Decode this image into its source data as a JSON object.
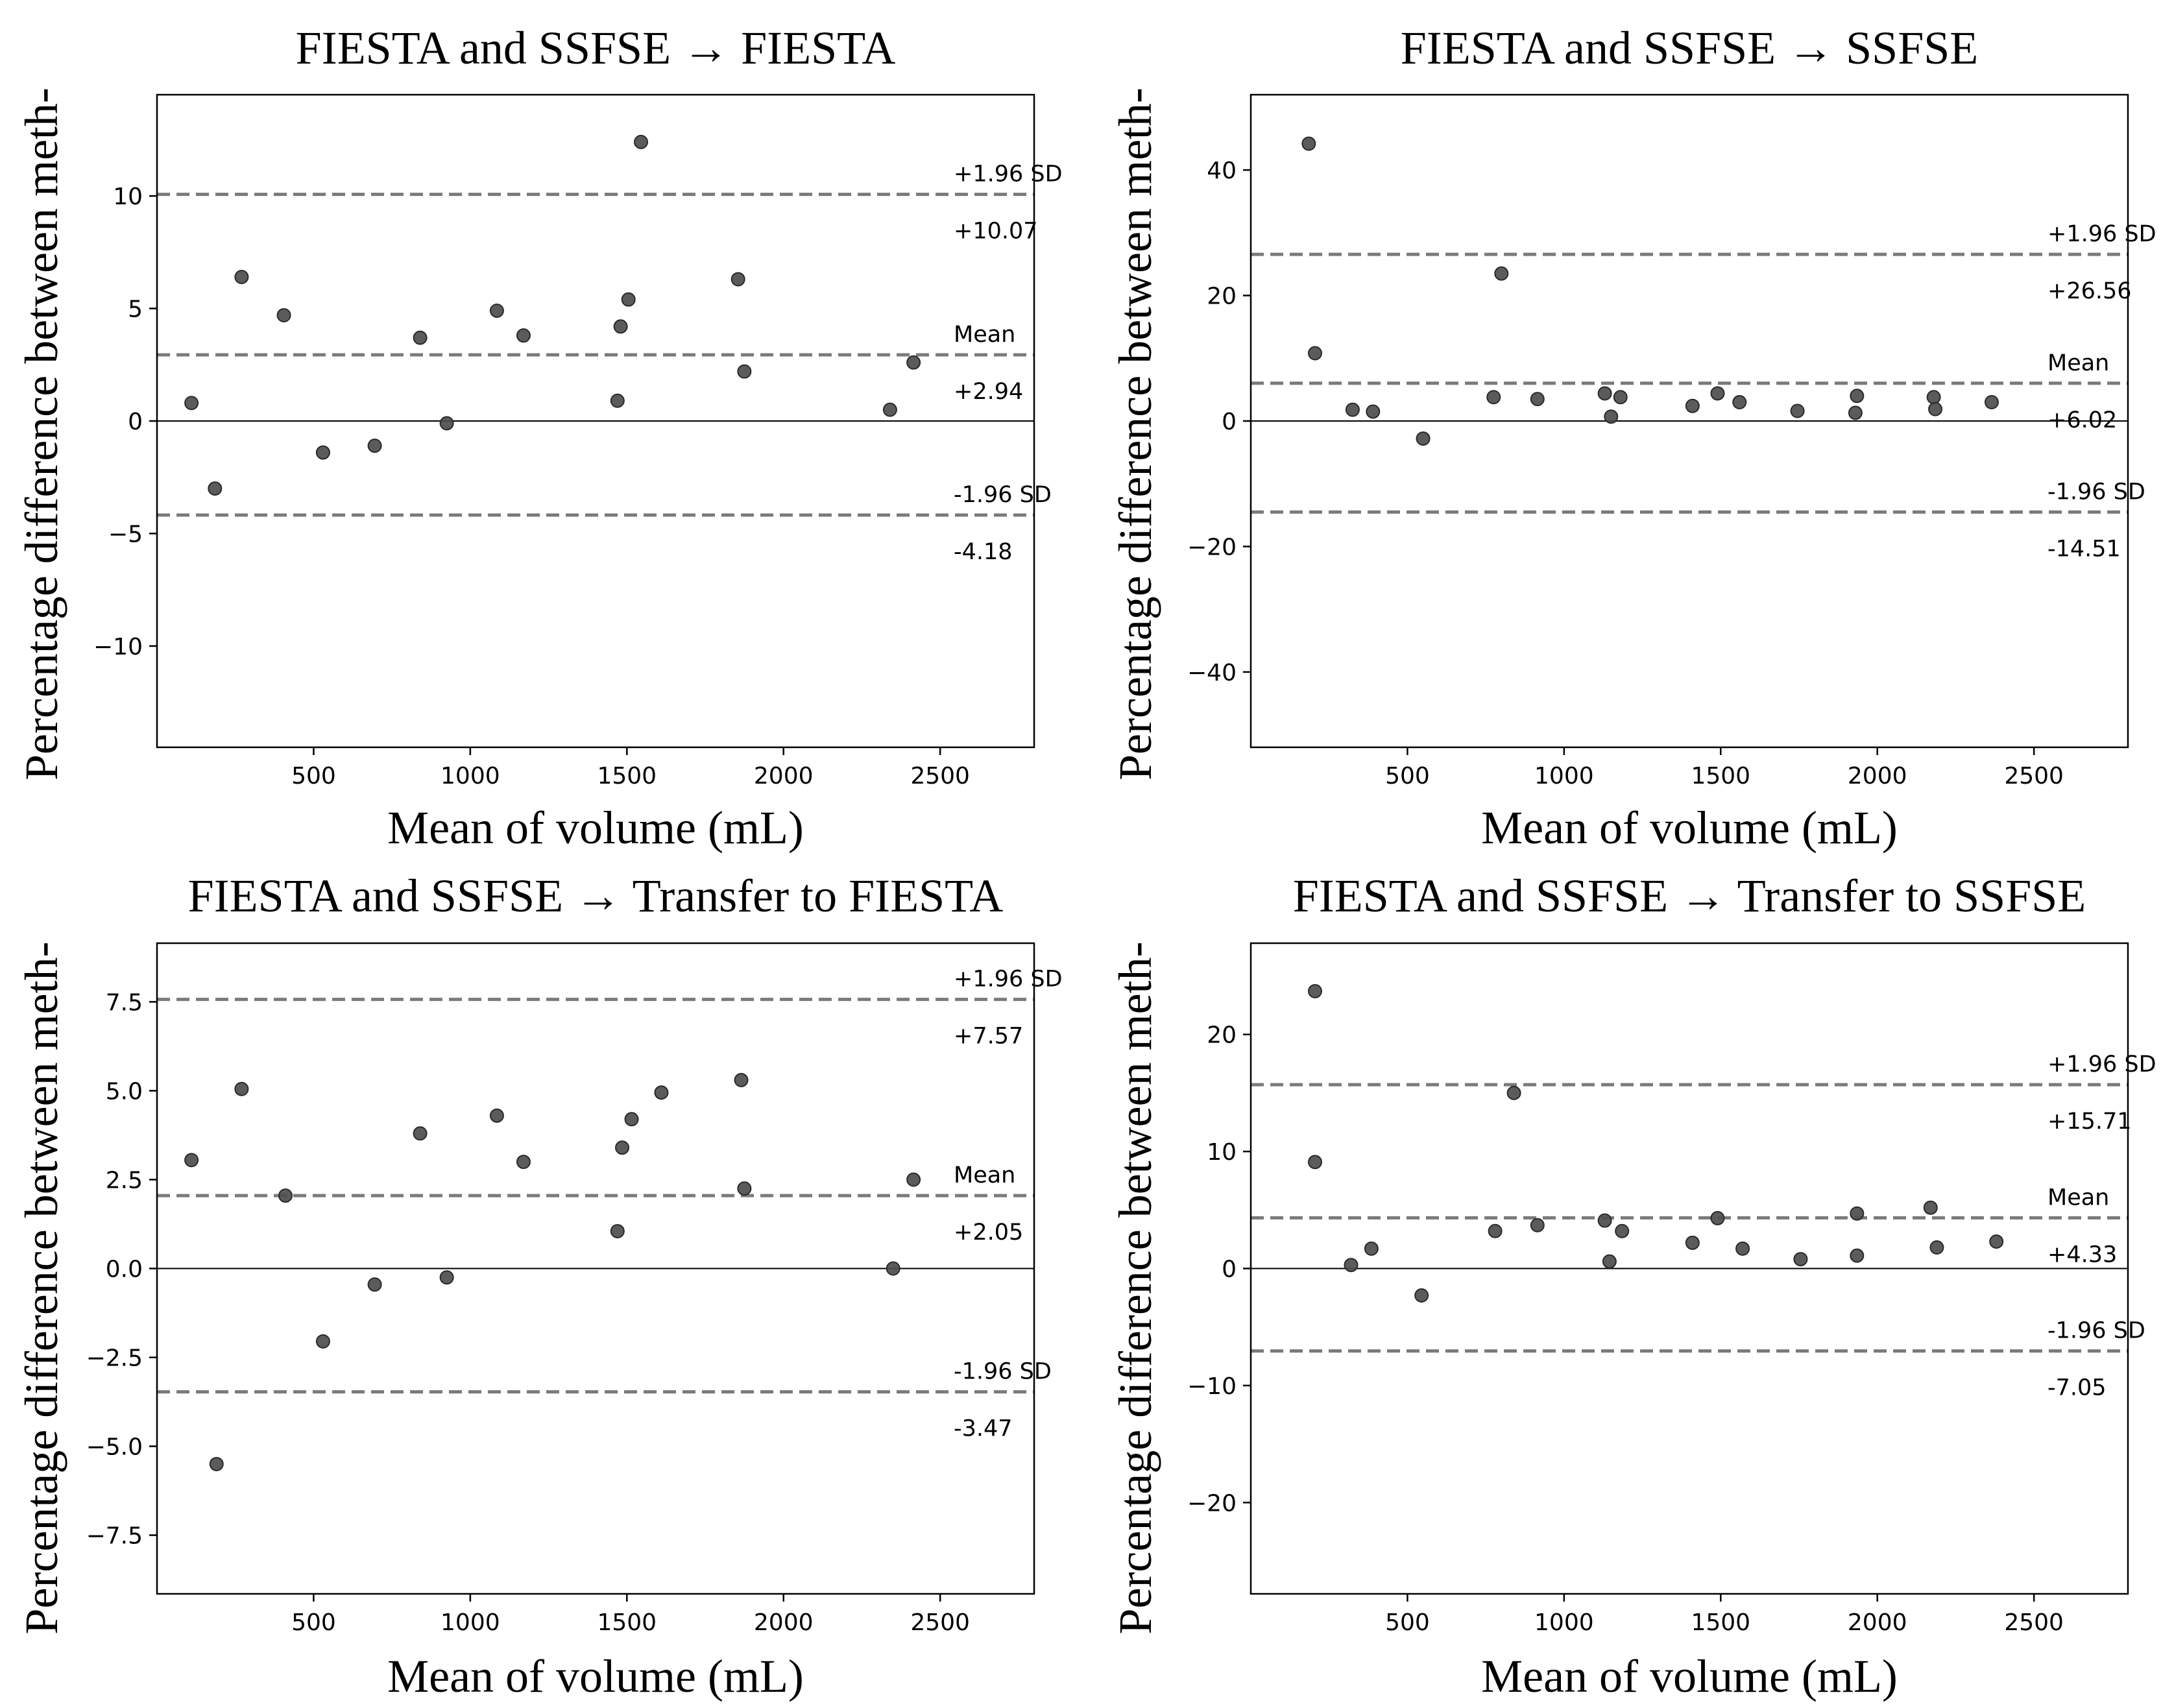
{
  "chart_data": [
    {
      "type": "scatter",
      "title": "FIESTA and SSFSE → FIESTA",
      "xlabel": "Mean of volume (mL)",
      "ylabel": "Percentage difference between meth-",
      "xlim": [
        0,
        2800
      ],
      "ylim": [
        -14.5,
        14.5
      ],
      "xticks": [
        500,
        1000,
        1500,
        2000,
        2500
      ],
      "xtick_labels": [
        "500",
        "1000",
        "1500",
        "2000",
        "2500"
      ],
      "yticks": [
        10,
        5,
        0,
        -5,
        -10
      ],
      "ytick_labels": [
        "10",
        "5",
        "0",
        "−5",
        "−10"
      ],
      "grid": false,
      "reference_lines": [
        {
          "name": "+1.96 SD",
          "label": "+1.96 SD",
          "value": 10.07,
          "value_label": "+10.07"
        },
        {
          "name": "Mean",
          "label": "Mean",
          "value": 2.94,
          "value_label": "+2.94"
        },
        {
          "name": "-1.96 SD",
          "label": "-1.96 SD",
          "value": -4.18,
          "value_label": "-4.18"
        }
      ],
      "points": [
        {
          "x": 110,
          "y": 0.8
        },
        {
          "x": 185,
          "y": -3.0
        },
        {
          "x": 270,
          "y": 6.4
        },
        {
          "x": 405,
          "y": 4.7
        },
        {
          "x": 530,
          "y": -1.4
        },
        {
          "x": 695,
          "y": -1.1
        },
        {
          "x": 840,
          "y": 3.7
        },
        {
          "x": 925,
          "y": -0.1
        },
        {
          "x": 1085,
          "y": 4.9
        },
        {
          "x": 1170,
          "y": 3.8
        },
        {
          "x": 1470,
          "y": 0.9
        },
        {
          "x": 1480,
          "y": 4.2
        },
        {
          "x": 1505,
          "y": 5.4
        },
        {
          "x": 1545,
          "y": 12.4
        },
        {
          "x": 1855,
          "y": 6.3
        },
        {
          "x": 1875,
          "y": 2.2
        },
        {
          "x": 2340,
          "y": 0.5
        },
        {
          "x": 2415,
          "y": 2.6
        }
      ]
    },
    {
      "type": "scatter",
      "title": "FIESTA and SSFSE → SSFSE",
      "xlabel": "Mean of volume (mL)",
      "ylabel": "Percentage difference between meth-",
      "xlim": [
        0,
        2800
      ],
      "ylim": [
        -52,
        52
      ],
      "xticks": [
        500,
        1000,
        1500,
        2000,
        2500
      ],
      "xtick_labels": [
        "500",
        "1000",
        "1500",
        "2000",
        "2500"
      ],
      "yticks": [
        40,
        20,
        0,
        -20,
        -40
      ],
      "ytick_labels": [
        "40",
        "20",
        "0",
        "−20",
        "−40"
      ],
      "grid": false,
      "reference_lines": [
        {
          "name": "+1.96 SD",
          "label": "+1.96 SD",
          "value": 26.56,
          "value_label": "+26.56"
        },
        {
          "name": "Mean",
          "label": "Mean",
          "value": 6.02,
          "value_label": "+6.02"
        },
        {
          "name": "-1.96 SD",
          "label": "-1.96 SD",
          "value": -14.51,
          "value_label": "-14.51"
        }
      ],
      "points": [
        {
          "x": 185,
          "y": 44.2
        },
        {
          "x": 205,
          "y": 10.8
        },
        {
          "x": 325,
          "y": 1.8
        },
        {
          "x": 390,
          "y": 1.5
        },
        {
          "x": 550,
          "y": -2.8
        },
        {
          "x": 775,
          "y": 3.8
        },
        {
          "x": 800,
          "y": 23.5
        },
        {
          "x": 915,
          "y": 3.5
        },
        {
          "x": 1130,
          "y": 4.4
        },
        {
          "x": 1150,
          "y": 0.7
        },
        {
          "x": 1180,
          "y": 3.8
        },
        {
          "x": 1410,
          "y": 2.4
        },
        {
          "x": 1490,
          "y": 4.4
        },
        {
          "x": 1560,
          "y": 3.0
        },
        {
          "x": 1745,
          "y": 1.6
        },
        {
          "x": 1930,
          "y": 1.3
        },
        {
          "x": 1935,
          "y": 4.0
        },
        {
          "x": 2180,
          "y": 3.8
        },
        {
          "x": 2185,
          "y": 1.9
        },
        {
          "x": 2365,
          "y": 3.0
        }
      ]
    },
    {
      "type": "scatter",
      "title": "FIESTA and SSFSE → Transfer to FIESTA",
      "xlabel": "Mean of volume (mL)",
      "ylabel": "Percentage difference between meth-",
      "xlim": [
        0,
        2800
      ],
      "ylim": [
        -9.15,
        9.15
      ],
      "xticks": [
        500,
        1000,
        1500,
        2000,
        2500
      ],
      "xtick_labels": [
        "500",
        "1000",
        "1500",
        "2000",
        "2500"
      ],
      "yticks": [
        7.5,
        5.0,
        2.5,
        0.0,
        -2.5,
        -5.0,
        -7.5
      ],
      "ytick_labels": [
        "7.5",
        "5.0",
        "2.5",
        "0.0",
        "−2.5",
        "−5.0",
        "−7.5"
      ],
      "grid": false,
      "reference_lines": [
        {
          "name": "+1.96 SD",
          "label": "+1.96 SD",
          "value": 7.57,
          "value_label": "+7.57"
        },
        {
          "name": "Mean",
          "label": "Mean",
          "value": 2.05,
          "value_label": "+2.05"
        },
        {
          "name": "-1.96 SD",
          "label": "-1.96 SD",
          "value": -3.47,
          "value_label": "-3.47"
        }
      ],
      "points": [
        {
          "x": 110,
          "y": 3.05
        },
        {
          "x": 190,
          "y": -5.5
        },
        {
          "x": 270,
          "y": 5.05
        },
        {
          "x": 410,
          "y": 2.05
        },
        {
          "x": 530,
          "y": -2.05
        },
        {
          "x": 695,
          "y": -0.45
        },
        {
          "x": 840,
          "y": 3.8
        },
        {
          "x": 925,
          "y": -0.25
        },
        {
          "x": 1085,
          "y": 4.3
        },
        {
          "x": 1170,
          "y": 3.0
        },
        {
          "x": 1470,
          "y": 1.05
        },
        {
          "x": 1485,
          "y": 3.4
        },
        {
          "x": 1515,
          "y": 4.2
        },
        {
          "x": 1610,
          "y": 4.95
        },
        {
          "x": 1865,
          "y": 5.3
        },
        {
          "x": 1875,
          "y": 2.25
        },
        {
          "x": 2350,
          "y": 0.0
        },
        {
          "x": 2415,
          "y": 2.5
        }
      ]
    },
    {
      "type": "scatter",
      "title": "FIESTA and SSFSE → Transfer to SSFSE",
      "xlabel": "Mean of volume (mL)",
      "ylabel": "Percentage difference between meth-",
      "xlim": [
        0,
        2800
      ],
      "ylim": [
        -27.8,
        27.8
      ],
      "xticks": [
        500,
        1000,
        1500,
        2000,
        2500
      ],
      "xtick_labels": [
        "500",
        "1000",
        "1500",
        "2000",
        "2500"
      ],
      "yticks": [
        20,
        10,
        0,
        -10,
        -20
      ],
      "ytick_labels": [
        "20",
        "10",
        "0",
        "−10",
        "−20"
      ],
      "grid": false,
      "reference_lines": [
        {
          "name": "+1.96 SD",
          "label": "+1.96 SD",
          "value": 15.71,
          "value_label": "+15.71"
        },
        {
          "name": "Mean",
          "label": "Mean",
          "value": 4.33,
          "value_label": "+4.33"
        },
        {
          "name": "-1.96 SD",
          "label": "-1.96 SD",
          "value": -7.05,
          "value_label": "-7.05"
        }
      ],
      "points": [
        {
          "x": 205,
          "y": 23.7
        },
        {
          "x": 205,
          "y": 9.1
        },
        {
          "x": 320,
          "y": 0.3
        },
        {
          "x": 385,
          "y": 1.7
        },
        {
          "x": 545,
          "y": -2.3
        },
        {
          "x": 780,
          "y": 3.2
        },
        {
          "x": 915,
          "y": 3.7
        },
        {
          "x": 840,
          "y": 15.0
        },
        {
          "x": 1130,
          "y": 4.1
        },
        {
          "x": 1145,
          "y": 0.6
        },
        {
          "x": 1185,
          "y": 3.2
        },
        {
          "x": 1410,
          "y": 2.2
        },
        {
          "x": 1490,
          "y": 4.3
        },
        {
          "x": 1570,
          "y": 1.7
        },
        {
          "x": 1755,
          "y": 0.8
        },
        {
          "x": 1935,
          "y": 4.7
        },
        {
          "x": 1935,
          "y": 1.1
        },
        {
          "x": 2170,
          "y": 5.2
        },
        {
          "x": 2190,
          "y": 1.8
        },
        {
          "x": 2380,
          "y": 2.3
        }
      ]
    }
  ]
}
